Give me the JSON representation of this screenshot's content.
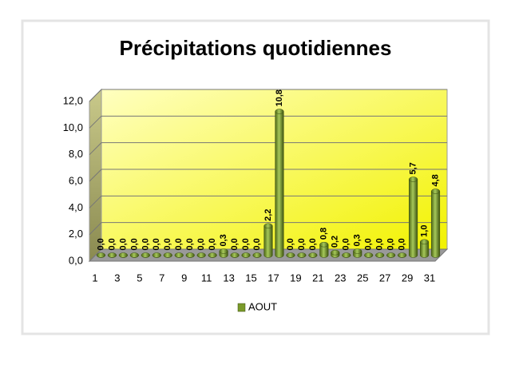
{
  "chart_data": {
    "type": "bar",
    "title": "Précipitations quotidiennes",
    "categories": [
      "1",
      null,
      "3",
      null,
      "5",
      null,
      "7",
      null,
      "9",
      null,
      "11",
      null,
      "13",
      null,
      "15",
      null,
      "17",
      null,
      "19",
      null,
      "21",
      null,
      "23",
      null,
      "25",
      null,
      "27",
      null,
      "29",
      null,
      "31"
    ],
    "series": [
      {
        "name": "AOUT",
        "color": "#7a9a2a",
        "values": [
          0,
          0,
          0,
          0,
          0,
          0,
          0,
          0,
          0,
          0,
          0,
          0.3,
          0,
          0,
          0,
          2.2,
          10.8,
          0,
          0,
          0,
          0.8,
          0.2,
          0,
          0.3,
          0,
          0,
          0,
          0,
          5.7,
          1.0,
          4.8
        ],
        "value_labels": [
          "0,0",
          "0,0",
          "0,0",
          "0,0",
          "0,0",
          "0,0",
          "0,0",
          "0,0",
          "0,0",
          "0,0",
          "0,0",
          "0,3",
          "0,0",
          "0,0",
          "0,0",
          "2,2",
          "10,8",
          "0,0",
          "0,0",
          "0,0",
          "0,8",
          "0,2",
          "0,0",
          "0,3",
          "0,0",
          "0,0",
          "0,0",
          "0,0",
          "5,7",
          "1,0",
          "4,8"
        ]
      }
    ],
    "ylim": [
      0,
      12
    ],
    "yticks": [
      {
        "value": 0,
        "label": "0,0"
      },
      {
        "value": 2,
        "label": "2,0"
      },
      {
        "value": 4,
        "label": "4,0"
      },
      {
        "value": 6,
        "label": "6,0"
      },
      {
        "value": 8,
        "label": "8,0"
      },
      {
        "value": 10,
        "label": "10,0"
      },
      {
        "value": 12,
        "label": "12,0"
      }
    ],
    "grid": true,
    "legend": "bottom"
  }
}
